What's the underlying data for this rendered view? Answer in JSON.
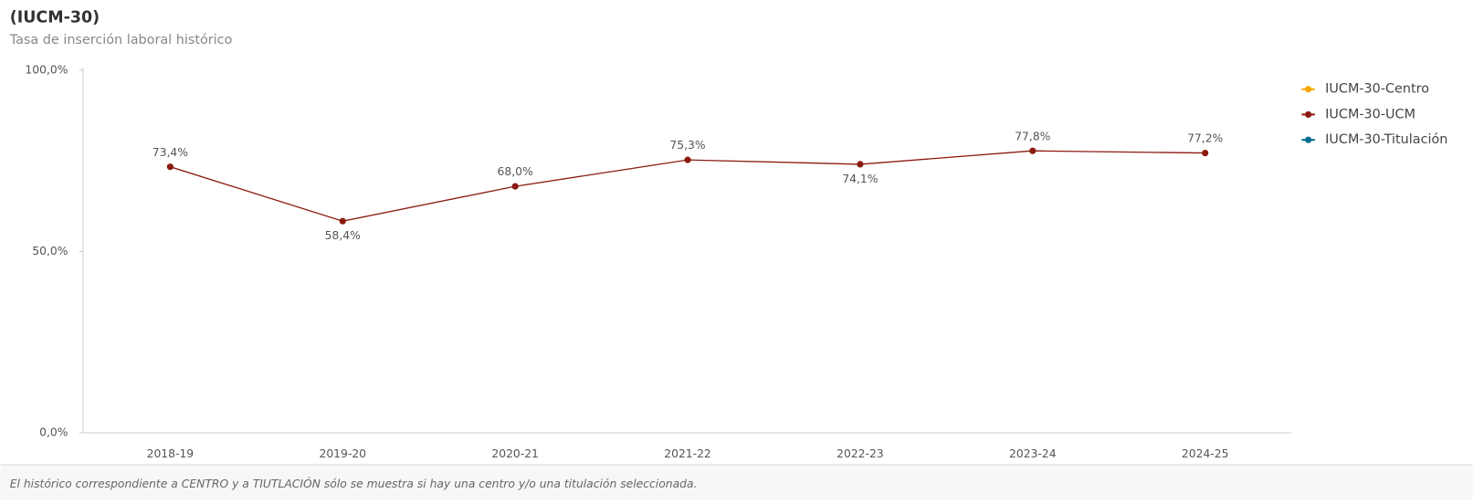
{
  "chart_data": {
    "type": "line",
    "title": "(IUCM-30)",
    "subtitle": "Tasa de inserción laboral histórico",
    "categories": [
      "2018-19",
      "2019-20",
      "2020-21",
      "2021-22",
      "2022-23",
      "2023-24",
      "2024-25"
    ],
    "series": [
      {
        "name": "IUCM-30-Centro",
        "color": "#f5a800",
        "values": [
          null,
          null,
          null,
          null,
          null,
          null,
          null
        ]
      },
      {
        "name": "IUCM-30-UCM",
        "color": "#8b1a10",
        "values": [
          73.4,
          58.4,
          68.0,
          75.3,
          74.1,
          77.8,
          77.2
        ],
        "value_labels": [
          "73,4%",
          "58,4%",
          "68,0%",
          "75,3%",
          "74,1%",
          "77,8%",
          "77,2%"
        ]
      },
      {
        "name": "IUCM-30-Titulación",
        "color": "#006d8f",
        "values": [
          null,
          null,
          null,
          null,
          null,
          null,
          null
        ]
      }
    ],
    "ylim": [
      0,
      100
    ],
    "yticks": [
      {
        "value": 0,
        "label": "0,0%"
      },
      {
        "value": 50,
        "label": "50,0%"
      },
      {
        "value": 100,
        "label": "100,0%"
      }
    ],
    "note": "El histórico correspondiente a CENTRO y a TIUTLACIÓN sólo se muestra si hay una centro y/o una titulación seleccionada."
  }
}
